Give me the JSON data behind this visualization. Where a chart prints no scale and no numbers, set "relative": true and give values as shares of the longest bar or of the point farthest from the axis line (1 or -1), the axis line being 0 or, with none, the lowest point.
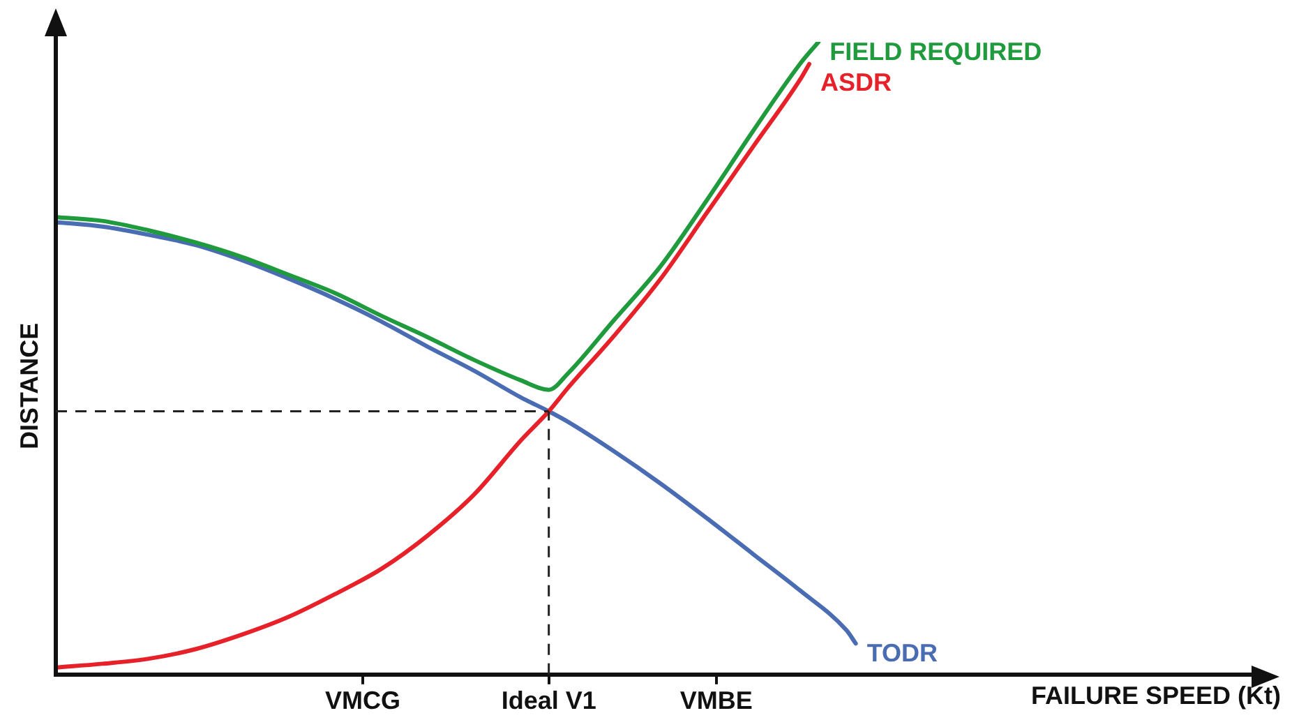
{
  "chart_data": {
    "type": "line",
    "relative": true,
    "xlabel": "FAILURE SPEED (Kt)",
    "ylabel": "DISTANCE",
    "legend": false,
    "grid": false,
    "marker": "none",
    "line_style": "solid",
    "categories": [
      null,
      null,
      null,
      null,
      null,
      null,
      null,
      null,
      null,
      null,
      null,
      null,
      null,
      null,
      null,
      null,
      null,
      null,
      null,
      null,
      null,
      null,
      null,
      null,
      null,
      null,
      null,
      null,
      null,
      null,
      null,
      null,
      null,
      "VMCG",
      null,
      null,
      null,
      null,
      null,
      null,
      null,
      null,
      null,
      null,
      null,
      null,
      null,
      null,
      null,
      null,
      null,
      null,
      null,
      "Ideal V1",
      null,
      null,
      null,
      null,
      null,
      null,
      null,
      null,
      null,
      null,
      null,
      null,
      null,
      null,
      null,
      null,
      null,
      "VMBE",
      null,
      null,
      null,
      null,
      null,
      null,
      null,
      null,
      null,
      null,
      null,
      null,
      null,
      null,
      null,
      null,
      null,
      null,
      null,
      null,
      null,
      null,
      null,
      null,
      null,
      null,
      null,
      null,
      null,
      null,
      null,
      null,
      null,
      null,
      null,
      null,
      null,
      null,
      null,
      null,
      null,
      null,
      null,
      null,
      null,
      null,
      null,
      null,
      null,
      null,
      null,
      null,
      null,
      null,
      null,
      null,
      null,
      null
    ],
    "series": [
      {
        "name": "FIELD REQUIRED",
        "color": "#1f9a3c",
        "values": [
          0.723,
          null,
          null,
          null,
          null,
          0.717,
          null,
          null,
          null,
          null,
          0.702,
          null,
          null,
          null,
          null,
          0.683,
          null,
          null,
          null,
          null,
          0.66,
          null,
          null,
          null,
          null,
          0.632,
          null,
          null,
          null,
          null,
          0.603,
          null,
          null,
          null,
          null,
          0.567,
          null,
          null,
          null,
          null,
          0.533,
          null,
          null,
          null,
          null,
          0.497,
          null,
          null,
          null,
          null,
          0.465,
          null,
          null,
          0.45,
          null,
          0.475,
          null,
          null,
          null,
          null,
          0.56,
          null,
          null,
          null,
          null,
          0.645,
          null,
          null,
          null,
          null,
          0.75,
          null,
          null,
          null,
          null,
          0.86,
          null,
          null,
          null,
          null,
          0.965,
          null,
          1,
          null,
          null,
          null,
          null,
          null,
          null,
          null,
          null,
          null,
          null,
          null,
          null,
          null,
          null,
          null,
          null,
          null,
          null,
          null,
          null,
          null,
          null,
          null,
          null,
          null,
          null,
          null,
          null,
          null,
          null,
          null,
          null,
          null,
          null,
          null,
          null,
          null,
          null,
          null,
          null,
          null,
          null,
          null,
          null,
          null,
          null,
          null
        ]
      },
      {
        "name": "ASDR",
        "color": "#e62129",
        "values": [
          0.011,
          null,
          null,
          null,
          null,
          0.017,
          null,
          null,
          null,
          null,
          0.025,
          null,
          null,
          null,
          null,
          0.04,
          null,
          null,
          null,
          null,
          0.063,
          null,
          null,
          null,
          null,
          0.091,
          null,
          null,
          null,
          null,
          0.127,
          null,
          null,
          null,
          null,
          0.167,
          null,
          null,
          null,
          null,
          0.22,
          null,
          null,
          null,
          null,
          0.285,
          null,
          null,
          null,
          null,
          0.37,
          null,
          null,
          0.416,
          null,
          0.452,
          null,
          null,
          null,
          null,
          0.535,
          null,
          null,
          null,
          null,
          0.625,
          null,
          null,
          null,
          null,
          0.73,
          null,
          null,
          null,
          null,
          0.835,
          null,
          null,
          null,
          null,
          0.94,
          0.965,
          null,
          null,
          null,
          null,
          null,
          null,
          null,
          null,
          null,
          null,
          null,
          null,
          null,
          null,
          null,
          null,
          null,
          null,
          null,
          null,
          null,
          null,
          null,
          null,
          null,
          null,
          null,
          null,
          null,
          null,
          null,
          null,
          null,
          null,
          null,
          null,
          null,
          null,
          null,
          null,
          null,
          null,
          null,
          null,
          null,
          null,
          null,
          null
        ]
      },
      {
        "name": "TODR",
        "color": "#4a6cb3",
        "values": [
          0.715,
          null,
          null,
          null,
          null,
          0.708,
          null,
          null,
          null,
          null,
          0.695,
          null,
          null,
          null,
          null,
          0.679,
          null,
          null,
          null,
          null,
          0.655,
          null,
          null,
          null,
          null,
          0.626,
          null,
          null,
          null,
          null,
          0.594,
          null,
          null,
          null,
          null,
          0.558,
          null,
          null,
          null,
          null,
          0.518,
          null,
          null,
          null,
          null,
          0.48,
          null,
          null,
          null,
          null,
          0.438,
          null,
          null,
          0.416,
          null,
          0.4,
          null,
          null,
          null,
          null,
          0.353,
          null,
          null,
          null,
          null,
          0.302,
          null,
          null,
          null,
          null,
          0.247,
          null,
          null,
          null,
          null,
          0.19,
          null,
          null,
          null,
          null,
          0.133,
          null,
          null,
          null,
          null,
          0.07,
          0.049,
          null,
          null,
          null,
          null,
          null,
          null,
          null,
          null,
          null,
          null,
          null,
          null,
          null,
          null,
          null,
          null,
          null,
          null,
          null,
          null,
          null,
          null,
          null,
          null,
          null,
          null,
          null,
          null,
          null,
          null,
          null,
          null,
          null,
          null,
          null,
          null,
          null,
          null,
          null,
          null,
          null,
          null,
          null
        ]
      }
    ],
    "ref_lines": [
      {
        "axis": "y",
        "value": 0.416,
        "line_style": "dashed",
        "color": "#222222"
      },
      {
        "axis": "x",
        "value": "Ideal V1",
        "line_style": "dashed",
        "color": "#222222"
      }
    ]
  }
}
